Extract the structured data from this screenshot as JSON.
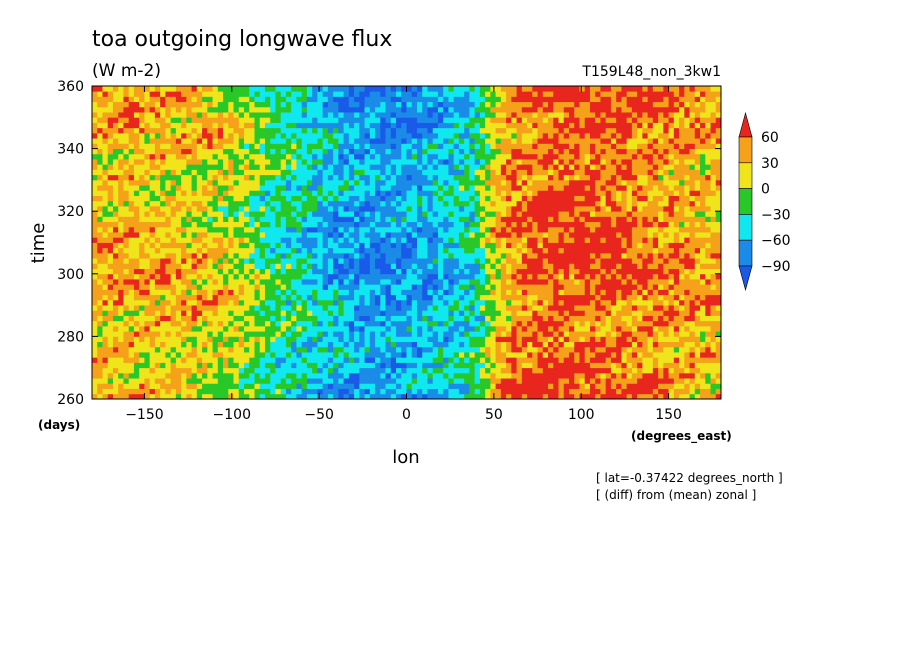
{
  "chart_data": {
    "type": "heatmap",
    "title": "toa outgoing longwave flux",
    "subtitle": "(W m-2)",
    "run_label": "T159L48_non_3kw1",
    "xlabel": "lon",
    "x_unit": "(degrees_east)",
    "ylabel": "time",
    "y_unit": "(days)",
    "xlim": [
      -180,
      180
    ],
    "ylim": [
      260,
      360
    ],
    "x_ticks": [
      -150,
      -100,
      -50,
      0,
      50,
      100,
      150
    ],
    "y_ticks": [
      260,
      280,
      300,
      320,
      340,
      360
    ],
    "colorbar": {
      "labels": [
        "60",
        "30",
        "0",
        "-30",
        "-60",
        "-90"
      ],
      "levels": [
        60,
        30,
        0,
        -30,
        -60,
        -90
      ],
      "colors": [
        "#e8261e",
        "#f5a21a",
        "#f0e41a",
        "#28c828",
        "#10e8f0",
        "#1a8ce8",
        "#1a5ae8"
      ],
      "extend": "both"
    },
    "annotations": [
      "[ lat=-0.37422 degrees_north ]",
      "[ (diff) from (mean) zonal ]"
    ],
    "zonal_profile": {
      "lon": [
        -180,
        -160,
        -140,
        -120,
        -100,
        -80,
        -60,
        -40,
        -20,
        0,
        20,
        40,
        50,
        60,
        80,
        100,
        120,
        140,
        160,
        180
      ],
      "anomaly": [
        32,
        34,
        28,
        24,
        12,
        -18,
        -40,
        -62,
        -72,
        -70,
        -58,
        -30,
        20,
        48,
        62,
        64,
        60,
        52,
        40,
        34
      ]
    }
  }
}
